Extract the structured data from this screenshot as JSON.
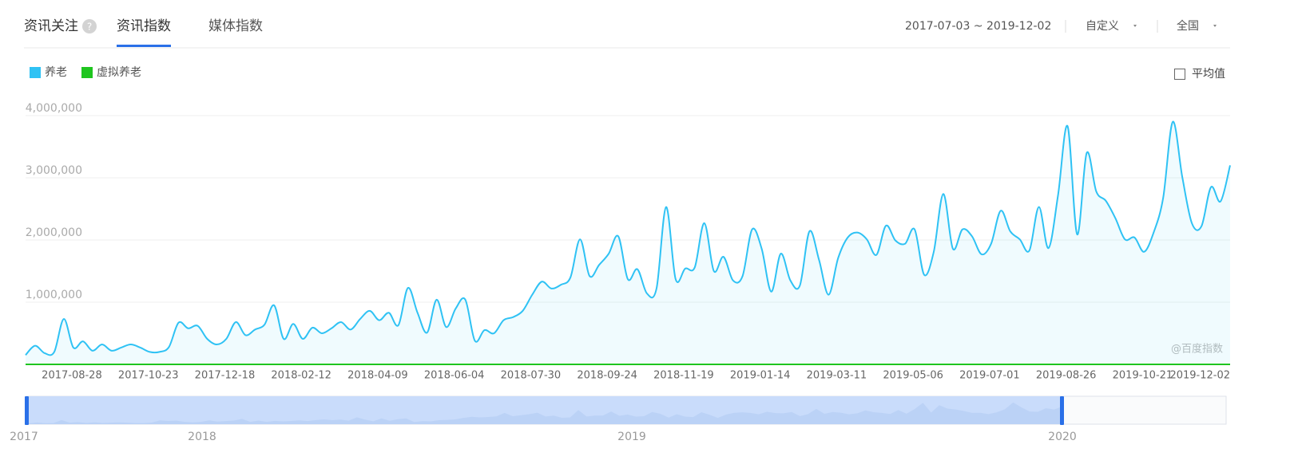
{
  "header": {
    "tabs": [
      "资讯关注",
      "资讯指数",
      "媒体指数"
    ],
    "help": "?",
    "date_range": "2017-07-03 ~ 2019-12-02",
    "custom": "自定义",
    "region": "全国"
  },
  "average_toggle": "平均值",
  "watermark": "@百度指数",
  "navigator": {
    "years": [
      "2017",
      "2018",
      "2019",
      "2020"
    ]
  },
  "chart_data": {
    "type": "line",
    "categories": [
      null,
      null,
      null,
      null,
      null,
      null,
      null,
      null,
      "2017-08-28",
      null,
      null,
      null,
      null,
      null,
      null,
      null,
      "2017-10-23",
      null,
      null,
      null,
      null,
      null,
      null,
      null,
      "2017-12-18",
      null,
      null,
      null,
      null,
      null,
      null,
      null,
      "2018-02-12",
      null,
      null,
      null,
      null,
      null,
      null,
      null,
      "2018-04-09",
      null,
      null,
      null,
      null,
      null,
      null,
      null,
      "2018-06-04",
      null,
      null,
      null,
      null,
      null,
      null,
      null,
      "2018-07-30",
      null,
      null,
      null,
      null,
      null,
      null,
      null,
      "2018-09-24",
      null,
      null,
      null,
      null,
      null,
      null,
      null,
      "2018-11-19",
      null,
      null,
      null,
      null,
      null,
      null,
      null,
      "2019-01-14",
      null,
      null,
      null,
      null,
      null,
      null,
      null,
      "2019-03-11",
      null,
      null,
      null,
      null,
      null,
      null,
      null,
      "2019-05-06",
      null,
      null,
      null,
      null,
      null,
      null,
      null,
      "2019-07-01",
      null,
      null,
      null,
      null,
      null,
      null,
      null,
      "2019-08-26",
      null,
      null,
      null,
      null,
      null,
      null,
      null,
      "2019-10-21",
      null,
      null,
      null,
      null,
      null,
      "2019-12-02"
    ],
    "series": [
      {
        "name": "养老",
        "color": "#2fc2f4",
        "values": [
          150000,
          300000,
          180000,
          200000,
          730000,
          270000,
          370000,
          220000,
          320000,
          220000,
          270000,
          320000,
          270000,
          200000,
          200000,
          280000,
          670000,
          580000,
          620000,
          410000,
          320000,
          410000,
          680000,
          470000,
          560000,
          640000,
          950000,
          410000,
          650000,
          410000,
          590000,
          500000,
          580000,
          680000,
          560000,
          730000,
          860000,
          710000,
          830000,
          630000,
          1230000,
          830000,
          510000,
          1040000,
          600000,
          900000,
          1040000,
          380000,
          550000,
          500000,
          710000,
          760000,
          860000,
          1120000,
          1330000,
          1220000,
          1280000,
          1400000,
          2010000,
          1420000,
          1600000,
          1780000,
          2060000,
          1370000,
          1530000,
          1140000,
          1220000,
          2530000,
          1370000,
          1540000,
          1560000,
          2270000,
          1500000,
          1730000,
          1350000,
          1420000,
          2170000,
          1860000,
          1170000,
          1780000,
          1350000,
          1270000,
          2140000,
          1680000,
          1120000,
          1710000,
          2040000,
          2120000,
          2010000,
          1760000,
          2230000,
          1990000,
          1940000,
          2170000,
          1440000,
          1810000,
          2740000,
          1860000,
          2170000,
          2060000,
          1770000,
          1940000,
          2470000,
          2140000,
          2010000,
          1830000,
          2530000,
          1870000,
          2720000,
          3830000,
          2090000,
          3400000,
          2780000,
          2630000,
          2350000,
          2010000,
          2040000,
          1810000,
          2120000,
          2680000,
          3900000,
          3010000,
          2270000,
          2220000,
          2850000,
          2620000,
          3200000
        ]
      },
      {
        "name": "虚拟养老",
        "color": "#1fc51f",
        "values": [
          0,
          0,
          0,
          0,
          0,
          0,
          0,
          0,
          0,
          0,
          0,
          0,
          0,
          0,
          0,
          0,
          0,
          0,
          0,
          0,
          0,
          0,
          0,
          0,
          0,
          0,
          0,
          0,
          0,
          0,
          0,
          0,
          0,
          0,
          0,
          0,
          0,
          0,
          0,
          0,
          0,
          0,
          0,
          0,
          0,
          0,
          0,
          0,
          0,
          0,
          0,
          0,
          0,
          0,
          0,
          0,
          0,
          0,
          0,
          0,
          0,
          0,
          0,
          0,
          0,
          0,
          0,
          0,
          0,
          0,
          0,
          0,
          0,
          0,
          0,
          0,
          0,
          0,
          0,
          0,
          0,
          0,
          0,
          0,
          0,
          0,
          0,
          0,
          0,
          0,
          0,
          0,
          0,
          0,
          0,
          0,
          0,
          0,
          0,
          0,
          0,
          0,
          0,
          0,
          0,
          0,
          0,
          0,
          0,
          0,
          0,
          0,
          0,
          0,
          0,
          0,
          0,
          0,
          0,
          0,
          0,
          0,
          0,
          0,
          0,
          0,
          0
        ]
      }
    ],
    "ylim": [
      0,
      4000000
    ],
    "yticks": [
      {
        "value": 1000000,
        "label": "1,000,000"
      },
      {
        "value": 2000000,
        "label": "2,000,000"
      },
      {
        "value": 3000000,
        "label": "3,000,000"
      },
      {
        "value": 4000000,
        "label": "4,000,000"
      }
    ],
    "grid": true,
    "legend": "top-left"
  }
}
